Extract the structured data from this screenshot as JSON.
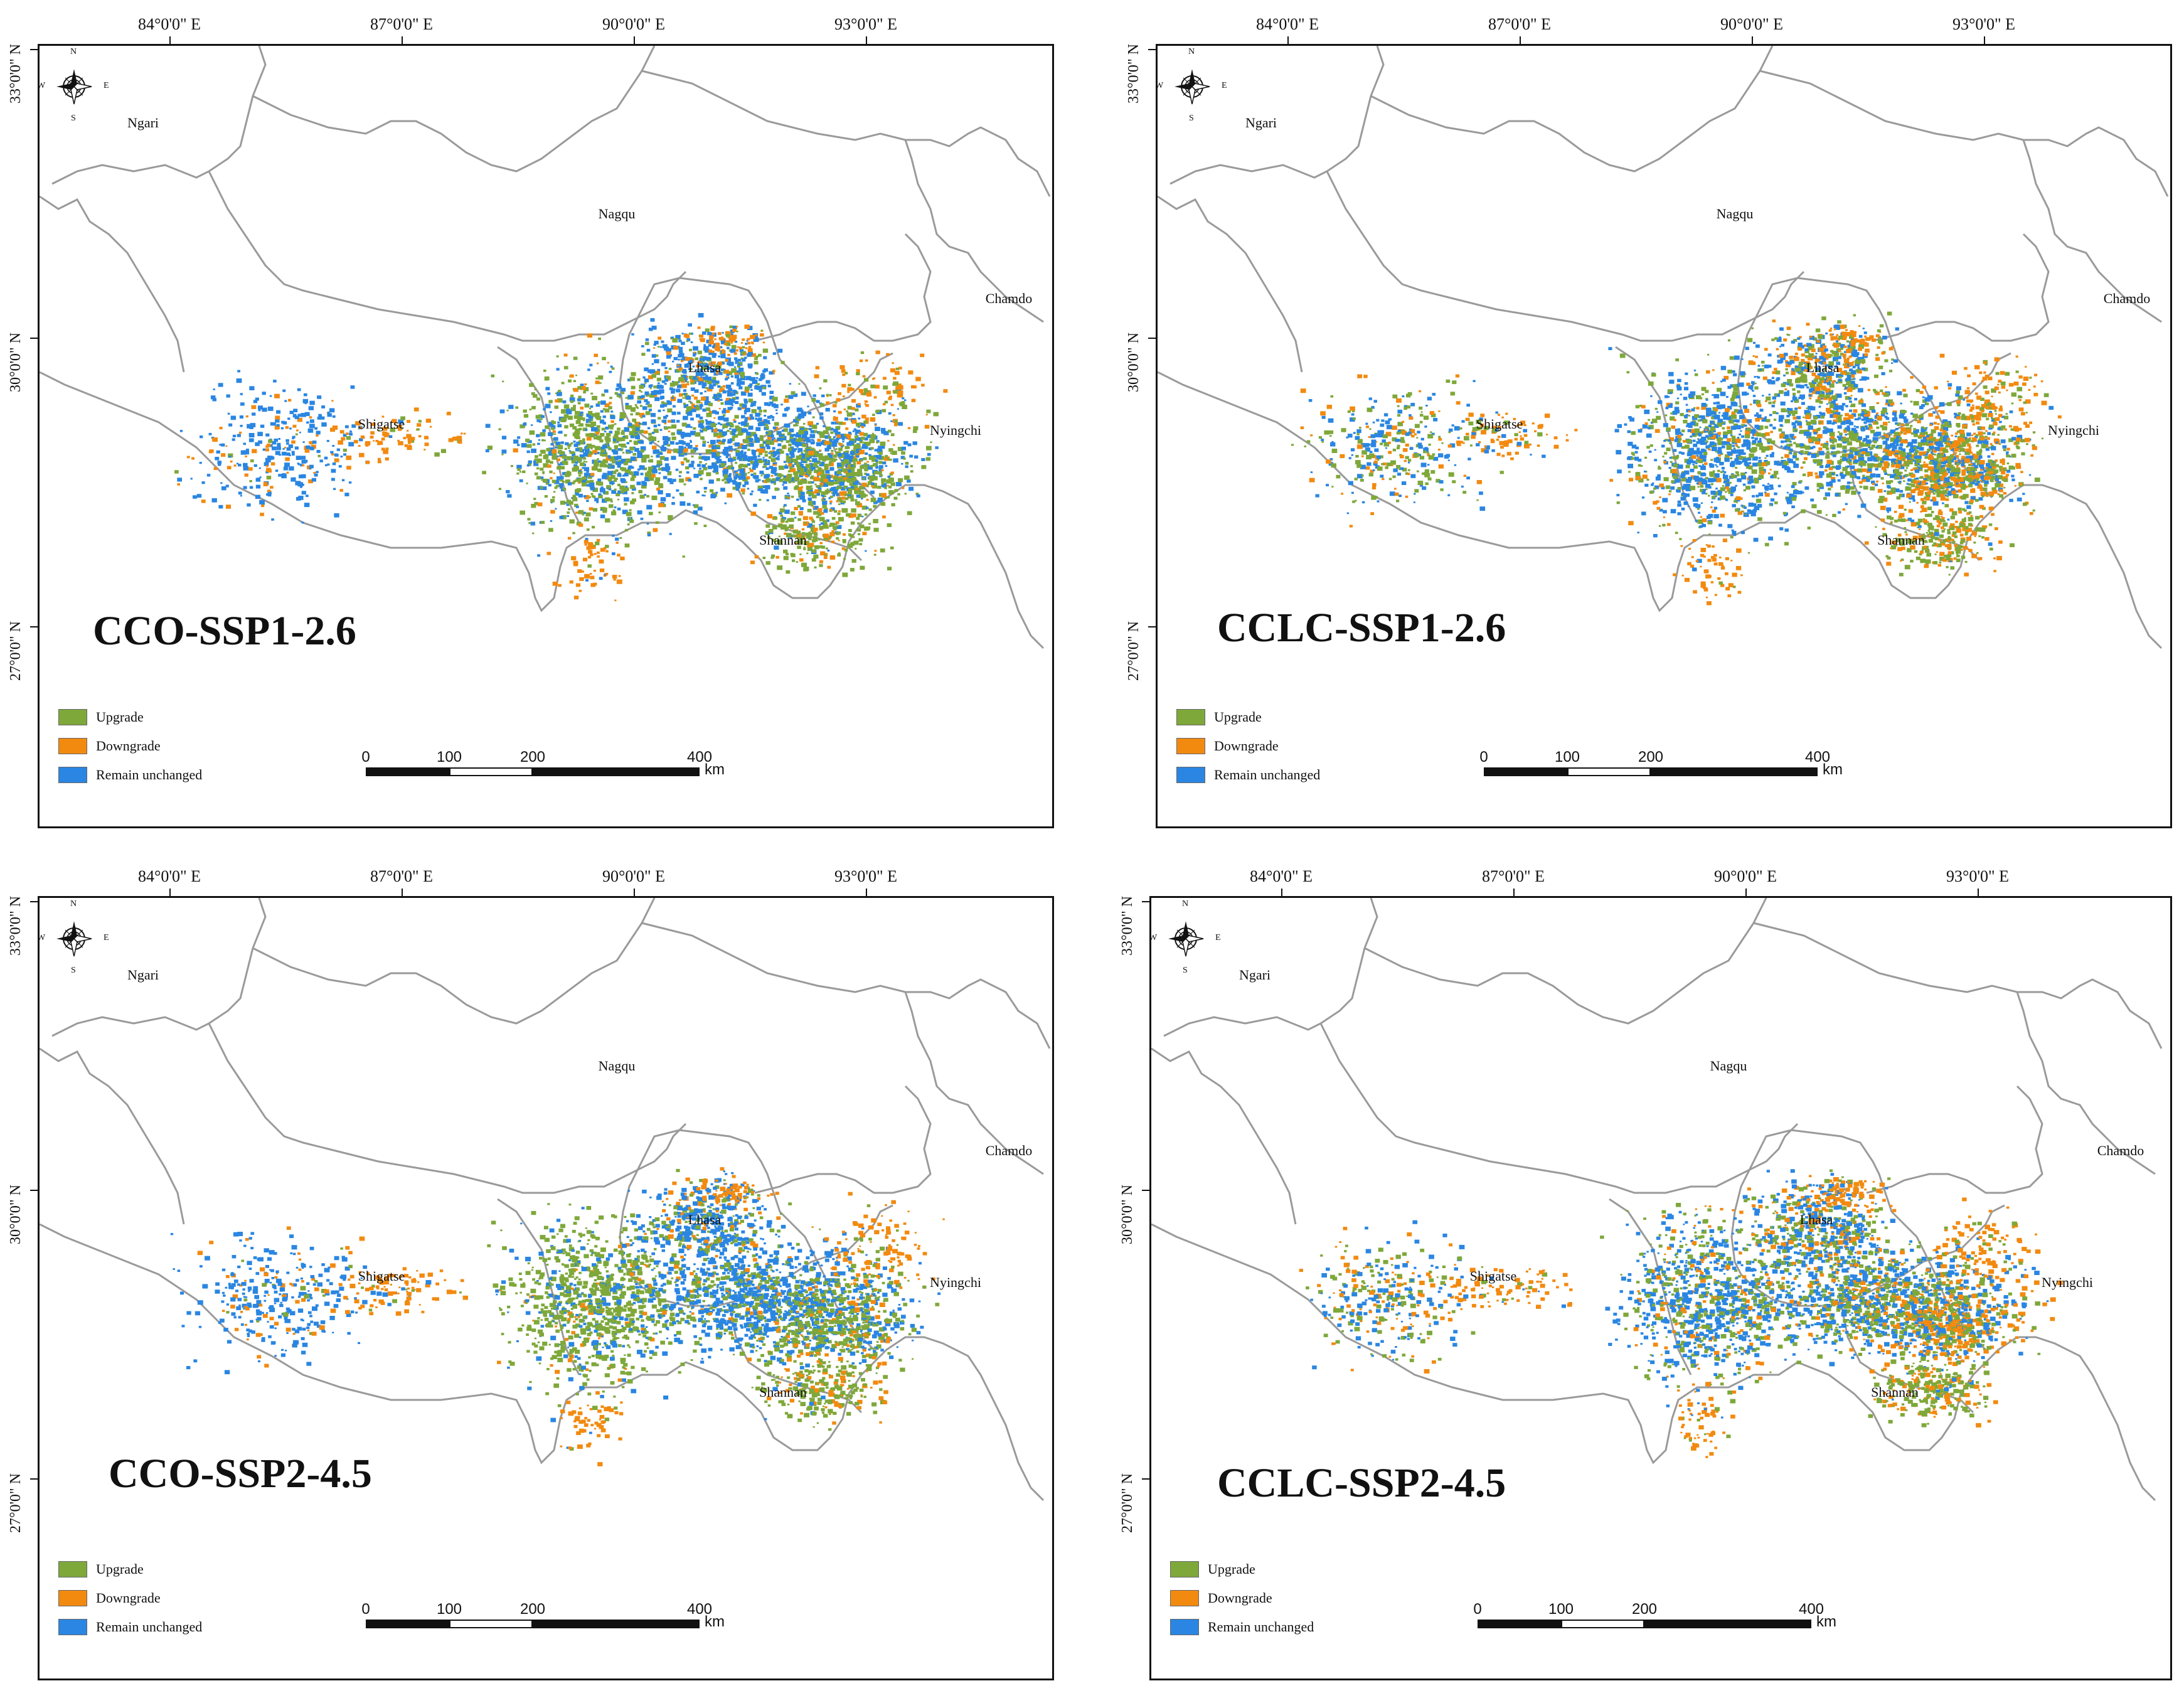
{
  "colors": {
    "upgrade": "#7ea83a",
    "downgrade": "#f28a10",
    "unchanged": "#2a86e2",
    "boundary": "#9a9a9a",
    "frame": "#111111"
  },
  "longitude_labels": [
    "84°0'0\" E",
    "87°0'0\" E",
    "90°0'0\" E",
    "93°0'0\" E"
  ],
  "latitude_labels": [
    "33°0'0\" N",
    "30°0'0\" N",
    "27°0'0\" N"
  ],
  "regions": {
    "ngari": "Ngari",
    "nagqu": "Nagqu",
    "chamdo": "Chamdo",
    "lhasa": "Lhasa",
    "shigatse": "Shigatse",
    "nyingchi": "Nyingchi",
    "shannan": "Shannan"
  },
  "compass": {
    "n": "N",
    "s": "S",
    "e": "E",
    "w": "W",
    "icon": "compass-rose-icon"
  },
  "legend": {
    "upgrade": "Upgrade",
    "downgrade": "Downgrade",
    "unchanged": "Remain unchanged"
  },
  "scalebar": {
    "ticks": [
      "0",
      "100",
      "200",
      "400"
    ],
    "unit": "km"
  },
  "panels": [
    {
      "id": "cco-ssp126",
      "title": "CCO-SSP1-2.6"
    },
    {
      "id": "cclc-ssp126",
      "title": "CCLC-SSP1-2.6"
    },
    {
      "id": "cco-ssp245",
      "title": "CCO-SSP2-4.5"
    },
    {
      "id": "cclc-ssp245",
      "title": "CCLC-SSP2-4.5"
    }
  ]
}
